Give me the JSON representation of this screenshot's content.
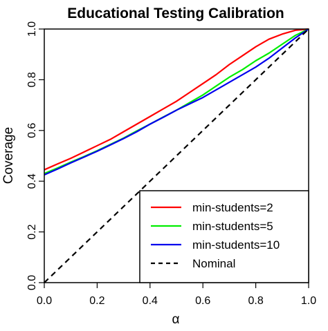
{
  "chart_data": {
    "type": "line",
    "title": "Educational Testing Calibration",
    "xlabel": "α",
    "ylabel": "Coverage",
    "xlim": [
      0,
      1
    ],
    "ylim": [
      0,
      1
    ],
    "x_ticks": [
      0,
      0.2,
      0.4,
      0.6,
      0.8,
      1
    ],
    "y_ticks": [
      0,
      0.2,
      0.4,
      0.6,
      0.8,
      1
    ],
    "x_tick_labels": [
      "0.0",
      "0.2",
      "0.4",
      "0.6",
      "0.8",
      "1.0"
    ],
    "y_tick_labels": [
      "0.0",
      "0.2",
      "0.4",
      "0.6",
      "0.8",
      "1.0"
    ],
    "grid": false,
    "legend_position": "bottom-right",
    "series": [
      {
        "name": "min-students=2",
        "color": "#ff0000",
        "dash": "solid",
        "x": [
          0,
          0.05,
          0.1,
          0.15,
          0.2,
          0.25,
          0.3,
          0.35,
          0.4,
          0.45,
          0.5,
          0.55,
          0.6,
          0.65,
          0.7,
          0.75,
          0.8,
          0.85,
          0.9,
          0.95,
          1
        ],
        "y": [
          0.445,
          0.468,
          0.49,
          0.515,
          0.54,
          0.565,
          0.595,
          0.625,
          0.655,
          0.685,
          0.715,
          0.75,
          0.785,
          0.82,
          0.86,
          0.895,
          0.93,
          0.96,
          0.98,
          0.995,
          1.0
        ]
      },
      {
        "name": "min-students=5",
        "color": "#00ee00",
        "dash": "solid",
        "x": [
          0,
          0.05,
          0.1,
          0.15,
          0.2,
          0.25,
          0.3,
          0.35,
          0.4,
          0.45,
          0.5,
          0.55,
          0.6,
          0.65,
          0.7,
          0.75,
          0.8,
          0.85,
          0.9,
          0.95,
          1
        ],
        "y": [
          0.43,
          0.452,
          0.475,
          0.497,
          0.52,
          0.545,
          0.57,
          0.598,
          0.625,
          0.653,
          0.68,
          0.71,
          0.74,
          0.775,
          0.81,
          0.84,
          0.875,
          0.905,
          0.94,
          0.975,
          1.0
        ]
      },
      {
        "name": "min-students=10",
        "color": "#0000ee",
        "dash": "solid",
        "x": [
          0,
          0.05,
          0.1,
          0.15,
          0.2,
          0.25,
          0.3,
          0.35,
          0.4,
          0.45,
          0.5,
          0.55,
          0.6,
          0.65,
          0.7,
          0.75,
          0.8,
          0.85,
          0.9,
          0.95,
          1
        ],
        "y": [
          0.425,
          0.448,
          0.472,
          0.495,
          0.518,
          0.543,
          0.568,
          0.595,
          0.625,
          0.652,
          0.68,
          0.705,
          0.73,
          0.76,
          0.79,
          0.82,
          0.85,
          0.885,
          0.925,
          0.965,
          1.0
        ]
      },
      {
        "name": "Nominal",
        "color": "#000000",
        "dash": "dashed",
        "x": [
          0,
          1
        ],
        "y": [
          0,
          1
        ]
      }
    ]
  }
}
